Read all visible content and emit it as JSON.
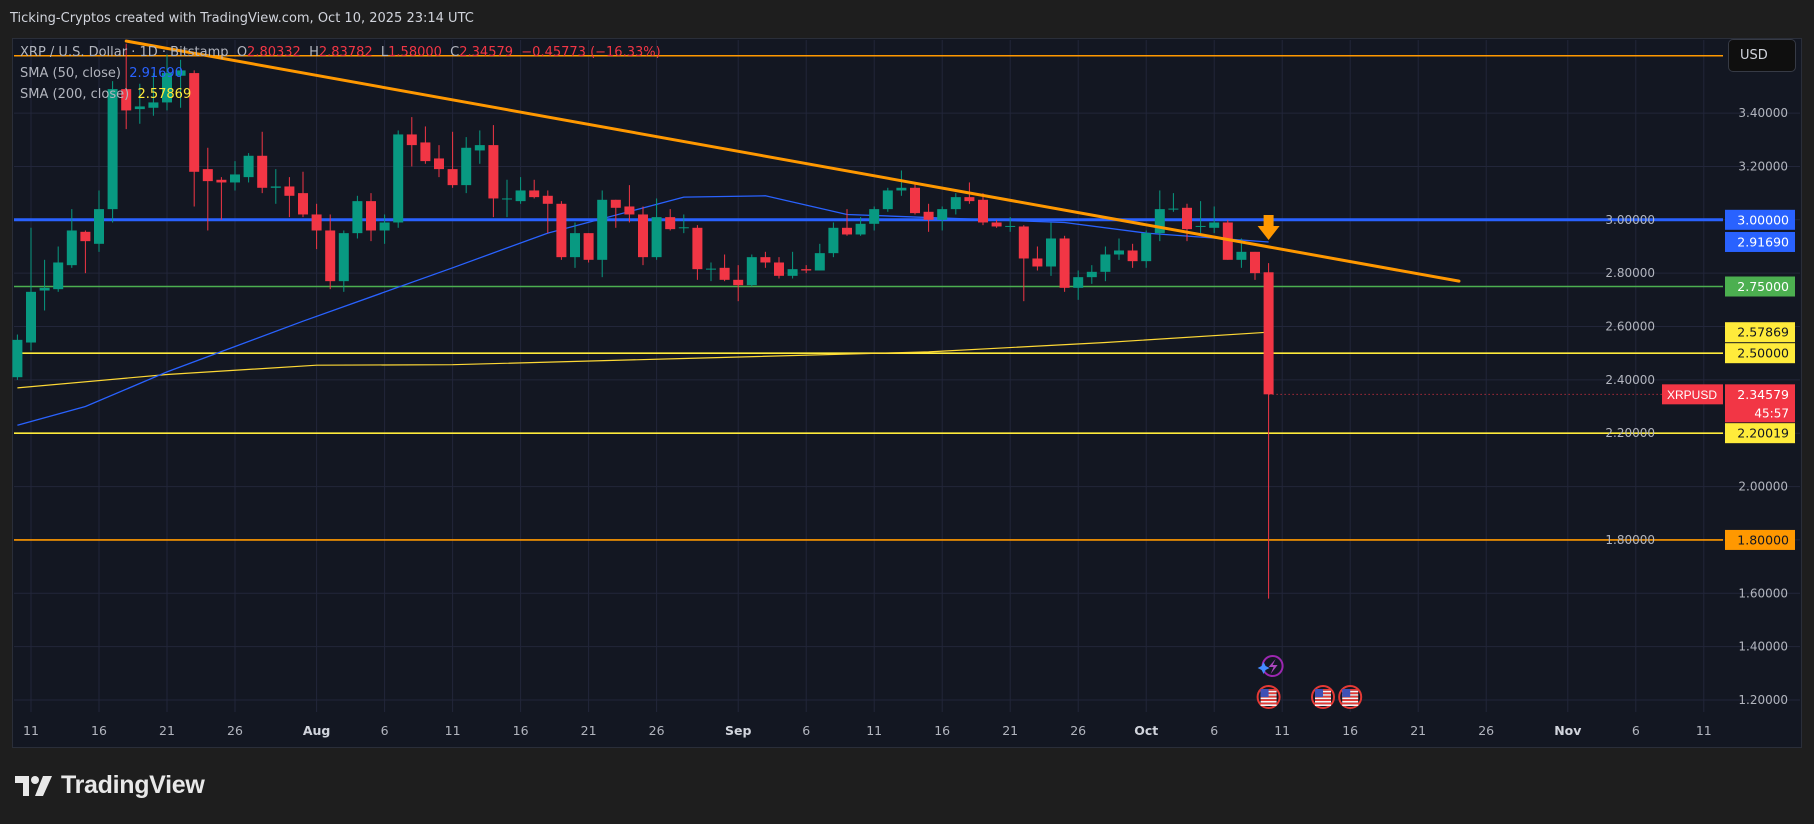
{
  "header": {
    "attribution": "Ticking-Cryptos created with TradingView.com, Oct 10, 2025 23:14 UTC"
  },
  "legend": {
    "symbol": "XRP / U.S. Dollar · 1D · Bitstamp",
    "o_label": "O",
    "o": "2.80332",
    "h_label": "H",
    "h": "2.83782",
    "l_label": "L",
    "l": "1.58000",
    "c_label": "C",
    "c": "2.34579",
    "change": "−0.45773 (−16.33%)",
    "sma50_label": "SMA (50, close)",
    "sma50_value": "2.91690",
    "sma200_label": "SMA (200, close)",
    "sma200_value": "2.57869"
  },
  "price_axis": {
    "currency_button": "USD",
    "ticks": [
      "1.20000",
      "1.40000",
      "1.60000",
      "1.80000",
      "2.00000",
      "2.20000",
      "2.40000",
      "2.60000",
      "2.80000",
      "3.00000",
      "3.20000",
      "3.40000"
    ],
    "price_labels": [
      {
        "value": "3.00000",
        "price": 3.0,
        "bg": "#2962ff",
        "fg": "#ffffff"
      },
      {
        "value": "2.91690",
        "price": 2.9169,
        "bg": "#2962ff",
        "fg": "#ffffff"
      },
      {
        "value": "2.75000",
        "price": 2.75,
        "bg": "#4caf50",
        "fg": "#ffffff"
      },
      {
        "value": "2.57869",
        "price": 2.57869,
        "bg": "#ffeb3b",
        "fg": "#131722"
      },
      {
        "value": "2.50000",
        "price": 2.5,
        "bg": "#ffeb3b",
        "fg": "#131722"
      },
      {
        "value": "2.34579",
        "price": 2.34579,
        "bg": "#f23645",
        "fg": "#ffffff"
      },
      {
        "value": "2.20019",
        "price": 2.20019,
        "bg": "#ffeb3b",
        "fg": "#131722"
      },
      {
        "value": "1.80000",
        "price": 1.8,
        "bg": "#ff9800",
        "fg": "#131722"
      }
    ],
    "symbol_tag": "XRPUSD",
    "countdown": "45:57"
  },
  "time_axis": {
    "labels": [
      {
        "text": "11",
        "date": "2025-07-11"
      },
      {
        "text": "16",
        "date": "2025-07-16"
      },
      {
        "text": "21",
        "date": "2025-07-21"
      },
      {
        "text": "26",
        "date": "2025-07-26"
      },
      {
        "text": "Aug",
        "date": "2025-08-01"
      },
      {
        "text": "6",
        "date": "2025-08-06"
      },
      {
        "text": "11",
        "date": "2025-08-11"
      },
      {
        "text": "16",
        "date": "2025-08-16"
      },
      {
        "text": "21",
        "date": "2025-08-21"
      },
      {
        "text": "26",
        "date": "2025-08-26"
      },
      {
        "text": "Sep",
        "date": "2025-09-01"
      },
      {
        "text": "6",
        "date": "2025-09-06"
      },
      {
        "text": "11",
        "date": "2025-09-11"
      },
      {
        "text": "16",
        "date": "2025-09-16"
      },
      {
        "text": "21",
        "date": "2025-09-21"
      },
      {
        "text": "26",
        "date": "2025-09-26"
      },
      {
        "text": "Oct",
        "date": "2025-10-01"
      },
      {
        "text": "6",
        "date": "2025-10-06"
      },
      {
        "text": "11",
        "date": "2025-10-11"
      },
      {
        "text": "16",
        "date": "2025-10-16"
      },
      {
        "text": "21",
        "date": "2025-10-21"
      },
      {
        "text": "26",
        "date": "2025-10-26"
      },
      {
        "text": "Nov",
        "date": "2025-11-01"
      },
      {
        "text": "6",
        "date": "2025-11-06"
      },
      {
        "text": "11",
        "date": "2025-11-11"
      }
    ]
  },
  "footer": {
    "brand": "TradingView"
  },
  "colors": {
    "up": "#089981",
    "down": "#f23645",
    "sma50": "#2962ff",
    "sma200": "#fdd835",
    "trendline": "#ff9800",
    "grid": "#22263a",
    "background": "#131722"
  },
  "chart_data": {
    "type": "candlestick",
    "title": "XRP / U.S. Dollar · 1D · Bitstamp",
    "ylim": [
      1.155,
      3.674
    ],
    "xlim": [
      "2025-07-10",
      "2025-11-12"
    ],
    "grid": true,
    "y_scale": "linear",
    "candles_fields": [
      "date",
      "open",
      "high",
      "low",
      "close"
    ],
    "candles": [
      [
        "2025-07-10",
        2.41,
        2.57,
        2.4,
        2.55
      ],
      [
        "2025-07-11",
        2.54,
        2.97,
        2.51,
        2.73
      ],
      [
        "2025-07-12",
        2.735,
        2.85,
        2.66,
        2.745
      ],
      [
        "2025-07-13",
        2.74,
        2.9,
        2.73,
        2.84
      ],
      [
        "2025-07-14",
        2.83,
        3.04,
        2.82,
        2.96
      ],
      [
        "2025-07-15",
        2.955,
        2.96,
        2.8,
        2.92
      ],
      [
        "2025-07-16",
        2.91,
        3.11,
        2.88,
        3.04
      ],
      [
        "2025-07-17",
        3.04,
        3.52,
        2.99,
        3.49
      ],
      [
        "2025-07-18",
        3.49,
        3.66,
        3.34,
        3.41
      ],
      [
        "2025-07-19",
        3.415,
        3.51,
        3.36,
        3.425
      ],
      [
        "2025-07-20",
        3.42,
        3.55,
        3.39,
        3.44
      ],
      [
        "2025-07-21",
        3.44,
        3.62,
        3.41,
        3.55
      ],
      [
        "2025-07-22",
        3.54,
        3.6,
        3.42,
        3.56
      ],
      [
        "2025-07-23",
        3.55,
        3.56,
        3.05,
        3.18
      ],
      [
        "2025-07-24",
        3.19,
        3.27,
        2.96,
        3.145
      ],
      [
        "2025-07-25",
        3.15,
        3.16,
        3.0,
        3.14
      ],
      [
        "2025-07-26",
        3.14,
        3.22,
        3.11,
        3.17
      ],
      [
        "2025-07-27",
        3.16,
        3.25,
        3.14,
        3.24
      ],
      [
        "2025-07-28",
        3.24,
        3.33,
        3.1,
        3.12
      ],
      [
        "2025-07-29",
        3.12,
        3.19,
        3.06,
        3.125
      ],
      [
        "2025-07-30",
        3.125,
        3.16,
        3.01,
        3.09
      ],
      [
        "2025-07-31",
        3.1,
        3.18,
        3.01,
        3.02
      ],
      [
        "2025-08-01",
        3.02,
        3.06,
        2.89,
        2.96
      ],
      [
        "2025-08-02",
        2.96,
        3.02,
        2.74,
        2.77
      ],
      [
        "2025-08-03",
        2.77,
        2.96,
        2.73,
        2.95
      ],
      [
        "2025-08-04",
        2.95,
        3.09,
        2.93,
        3.07
      ],
      [
        "2025-08-05",
        3.07,
        3.1,
        2.92,
        2.96
      ],
      [
        "2025-08-06",
        2.96,
        3.02,
        2.91,
        2.99
      ],
      [
        "2025-08-07",
        2.99,
        3.335,
        2.97,
        3.32
      ],
      [
        "2025-08-08",
        3.32,
        3.385,
        3.2,
        3.28
      ],
      [
        "2025-08-09",
        3.29,
        3.35,
        3.21,
        3.22
      ],
      [
        "2025-08-10",
        3.23,
        3.28,
        3.16,
        3.19
      ],
      [
        "2025-08-11",
        3.19,
        3.33,
        3.12,
        3.13
      ],
      [
        "2025-08-12",
        3.13,
        3.31,
        3.1,
        3.27
      ],
      [
        "2025-08-13",
        3.26,
        3.335,
        3.21,
        3.28
      ],
      [
        "2025-08-14",
        3.28,
        3.355,
        3.01,
        3.08
      ],
      [
        "2025-08-15",
        3.08,
        3.15,
        3.01,
        3.08
      ],
      [
        "2025-08-16",
        3.07,
        3.16,
        3.06,
        3.11
      ],
      [
        "2025-08-17",
        3.11,
        3.15,
        3.08,
        3.085
      ],
      [
        "2025-08-18",
        3.09,
        3.11,
        2.95,
        3.06
      ],
      [
        "2025-08-19",
        3.06,
        3.07,
        2.85,
        2.86
      ],
      [
        "2025-08-20",
        2.86,
        2.99,
        2.82,
        2.95
      ],
      [
        "2025-08-21",
        2.95,
        2.95,
        2.84,
        2.85
      ],
      [
        "2025-08-22",
        2.85,
        3.11,
        2.785,
        3.075
      ],
      [
        "2025-08-23",
        3.075,
        3.075,
        2.97,
        3.045
      ],
      [
        "2025-08-24",
        3.05,
        3.13,
        2.99,
        3.02
      ],
      [
        "2025-08-25",
        3.02,
        3.05,
        2.83,
        2.86
      ],
      [
        "2025-08-26",
        2.86,
        3.08,
        2.85,
        3.01
      ],
      [
        "2025-08-27",
        3.01,
        3.04,
        2.96,
        2.965
      ],
      [
        "2025-08-28",
        2.97,
        3.02,
        2.95,
        2.972
      ],
      [
        "2025-08-29",
        2.97,
        2.98,
        2.775,
        2.815
      ],
      [
        "2025-08-30",
        2.815,
        2.84,
        2.77,
        2.817
      ],
      [
        "2025-08-31",
        2.82,
        2.87,
        2.77,
        2.775
      ],
      [
        "2025-09-01",
        2.775,
        2.83,
        2.695,
        2.755
      ],
      [
        "2025-09-02",
        2.755,
        2.87,
        2.75,
        2.86
      ],
      [
        "2025-09-03",
        2.86,
        2.88,
        2.82,
        2.84
      ],
      [
        "2025-09-04",
        2.84,
        2.86,
        2.78,
        2.79
      ],
      [
        "2025-09-05",
        2.79,
        2.88,
        2.78,
        2.815
      ],
      [
        "2025-09-06",
        2.815,
        2.83,
        2.8,
        2.81
      ],
      [
        "2025-09-07",
        2.81,
        2.91,
        2.81,
        2.875
      ],
      [
        "2025-09-08",
        2.875,
        2.99,
        2.86,
        2.97
      ],
      [
        "2025-09-09",
        2.97,
        3.04,
        2.94,
        2.945
      ],
      [
        "2025-09-10",
        2.945,
        3.01,
        2.94,
        2.985
      ],
      [
        "2025-09-11",
        2.985,
        3.05,
        2.96,
        3.04
      ],
      [
        "2025-09-12",
        3.04,
        3.12,
        3.03,
        3.11
      ],
      [
        "2025-09-13",
        3.11,
        3.185,
        3.09,
        3.12
      ],
      [
        "2025-09-14",
        3.12,
        3.14,
        3.02,
        3.025
      ],
      [
        "2025-09-15",
        3.03,
        3.06,
        2.955,
        3.0
      ],
      [
        "2025-09-16",
        3.0,
        3.05,
        2.96,
        3.04
      ],
      [
        "2025-09-17",
        3.04,
        3.1,
        3.02,
        3.085
      ],
      [
        "2025-09-18",
        3.085,
        3.14,
        3.06,
        3.07
      ],
      [
        "2025-09-19",
        3.075,
        3.1,
        2.98,
        2.99
      ],
      [
        "2025-09-20",
        2.99,
        3.0,
        2.97,
        2.975
      ],
      [
        "2025-09-21",
        2.975,
        3.01,
        2.955,
        2.977
      ],
      [
        "2025-09-22",
        2.975,
        2.98,
        2.695,
        2.855
      ],
      [
        "2025-09-23",
        2.855,
        2.9,
        2.81,
        2.825
      ],
      [
        "2025-09-24",
        2.825,
        2.99,
        2.79,
        2.93
      ],
      [
        "2025-09-25",
        2.93,
        2.94,
        2.73,
        2.745
      ],
      [
        "2025-09-26",
        2.745,
        2.81,
        2.7,
        2.785
      ],
      [
        "2025-09-27",
        2.785,
        2.83,
        2.76,
        2.805
      ],
      [
        "2025-09-28",
        2.805,
        2.9,
        2.77,
        2.87
      ],
      [
        "2025-09-29",
        2.87,
        2.93,
        2.85,
        2.885
      ],
      [
        "2025-09-30",
        2.885,
        2.91,
        2.82,
        2.845
      ],
      [
        "2025-10-01",
        2.845,
        2.96,
        2.82,
        2.95
      ],
      [
        "2025-10-02",
        2.95,
        3.11,
        2.92,
        3.04
      ],
      [
        "2025-10-03",
        3.04,
        3.1,
        3.03,
        3.042
      ],
      [
        "2025-10-04",
        3.045,
        3.06,
        2.92,
        2.965
      ],
      [
        "2025-10-05",
        2.975,
        3.07,
        2.95,
        2.977
      ],
      [
        "2025-10-06",
        2.97,
        3.05,
        2.95,
        2.99
      ],
      [
        "2025-10-07",
        2.99,
        3.0,
        2.85,
        2.85
      ],
      [
        "2025-10-08",
        2.85,
        2.93,
        2.82,
        2.88
      ],
      [
        "2025-10-09",
        2.88,
        2.88,
        2.775,
        2.8
      ],
      [
        "2025-10-10",
        2.80332,
        2.83782,
        1.58,
        2.34579
      ]
    ],
    "sma50": [
      [
        "2025-07-10",
        2.23
      ],
      [
        "2025-07-15",
        2.3
      ],
      [
        "2025-07-21",
        2.43
      ],
      [
        "2025-07-31",
        2.62
      ],
      [
        "2025-08-11",
        2.82
      ],
      [
        "2025-08-18",
        2.95
      ],
      [
        "2025-08-28",
        3.085
      ],
      [
        "2025-09-03",
        3.09
      ],
      [
        "2025-09-09",
        3.02
      ],
      [
        "2025-09-25",
        2.99
      ],
      [
        "2025-10-01",
        2.95
      ],
      [
        "2025-10-10",
        2.9169
      ]
    ],
    "sma200": [
      [
        "2025-07-10",
        2.37
      ],
      [
        "2025-07-21",
        2.42
      ],
      [
        "2025-08-01",
        2.455
      ],
      [
        "2025-08-11",
        2.457
      ],
      [
        "2025-08-28",
        2.48
      ],
      [
        "2025-09-15",
        2.505
      ],
      [
        "2025-09-28",
        2.54
      ],
      [
        "2025-10-10",
        2.57869
      ]
    ],
    "horizontal_levels": [
      {
        "price": 3.615,
        "color": "#ff9800"
      },
      {
        "price": 3.0,
        "color": "#2962ff"
      },
      {
        "price": 2.75,
        "color": "#4caf50"
      },
      {
        "price": 2.5,
        "color": "#ffeb3b"
      },
      {
        "price": 2.20019,
        "color": "#ffeb3b"
      },
      {
        "price": 1.8,
        "color": "#ff9800"
      }
    ],
    "trendline": {
      "from": [
        "2025-07-18",
        3.67
      ],
      "to": [
        "2025-10-24",
        2.77
      ],
      "color": "#ff9800"
    },
    "arrow_marker": {
      "date": "2025-10-10",
      "direction": "down",
      "color": "#ff9800"
    },
    "event_markers": [
      {
        "date": "2025-10-10",
        "icon": "lightning-icon"
      },
      {
        "date": "2025-10-10",
        "icon": "us-flag-icon"
      },
      {
        "date": "2025-10-14",
        "icon": "us-flag-icon"
      },
      {
        "date": "2025-10-16",
        "icon": "us-flag-icon"
      }
    ]
  }
}
